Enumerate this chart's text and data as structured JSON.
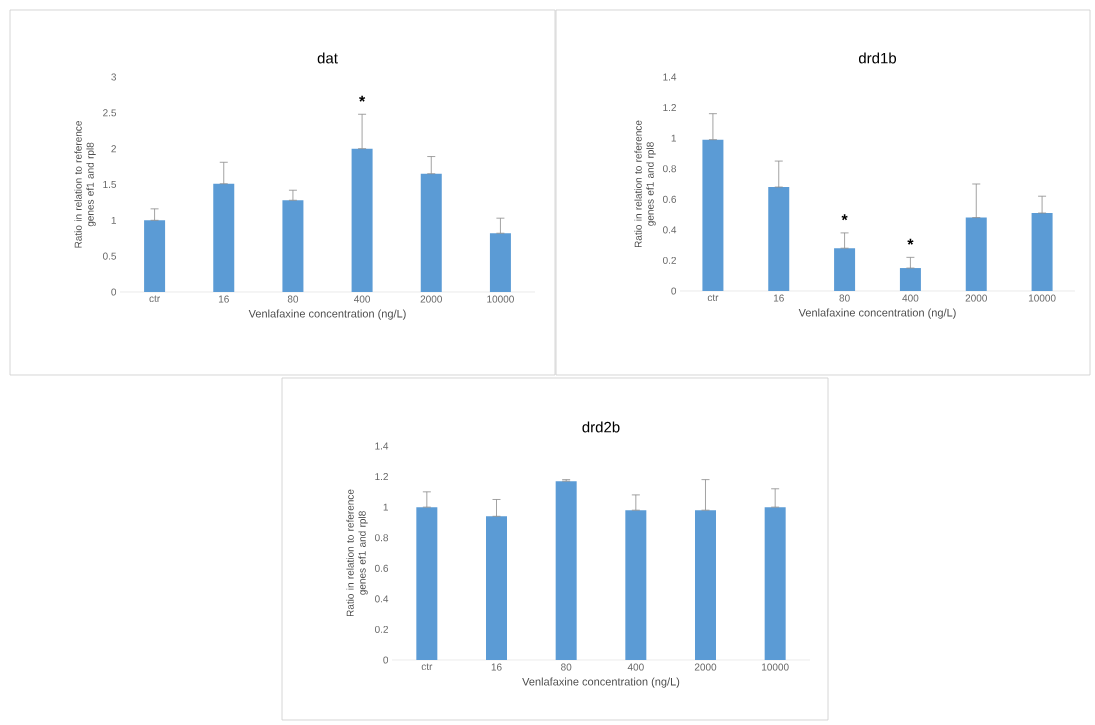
{
  "chart_data": [
    {
      "type": "bar",
      "title": "dat",
      "xlabel": "Venlafaxine concentration (ng/L)",
      "ylabel": "Ratio in relation to reference genes ef1 and rpl8",
      "categories": [
        "ctr",
        "16",
        "80",
        "400",
        "2000",
        "10000"
      ],
      "values": [
        1.0,
        1.51,
        1.28,
        2.0,
        1.65,
        0.82
      ],
      "color": "#5b9bd5",
      "errors": [
        [
          1.0,
          1.16
        ],
        [
          1.51,
          1.81
        ],
        [
          1.28,
          1.42
        ],
        [
          2.0,
          2.48
        ],
        [
          1.65,
          1.89
        ],
        [
          0.82,
          1.03
        ]
      ],
      "ylim": [
        0,
        3
      ],
      "yticks": [
        0,
        0.5,
        1,
        1.5,
        2,
        2.5,
        3
      ],
      "grid": false,
      "annotations": [
        {
          "text": "*",
          "x": "400",
          "y": 2.48
        }
      ]
    },
    {
      "type": "bar",
      "title": "drd1b",
      "xlabel": "Venlafaxine concentration (ng/L)",
      "ylabel": "Ratio in relation to reference genes ef1 and rpl8",
      "categories": [
        "ctr",
        "16",
        "80",
        "400",
        "2000",
        "10000"
      ],
      "values": [
        0.99,
        0.68,
        0.28,
        0.15,
        0.48,
        0.51
      ],
      "color": "#5b9bd5",
      "errors": [
        [
          0.99,
          1.16
        ],
        [
          0.68,
          0.85
        ],
        [
          0.28,
          0.38
        ],
        [
          0.15,
          0.22
        ],
        [
          0.48,
          0.7
        ],
        [
          0.51,
          0.62
        ]
      ],
      "ylim": [
        0,
        1.4
      ],
      "yticks": [
        0,
        0.2,
        0.4,
        0.6,
        0.8,
        1,
        1.2,
        1.4
      ],
      "grid": false,
      "annotations": [
        {
          "text": "*",
          "x": "80",
          "y": 0.38
        },
        {
          "text": "*",
          "x": "400",
          "y": 0.22
        }
      ]
    },
    {
      "type": "bar",
      "title": "drd2b",
      "xlabel": "Venlafaxine concentration (ng/L)",
      "ylabel": "Ratio in relation to reference genes ef1 and rpl8",
      "categories": [
        "ctr",
        "16",
        "80",
        "400",
        "2000",
        "10000"
      ],
      "values": [
        1.0,
        0.94,
        1.17,
        0.98,
        0.98,
        1.0
      ],
      "color": "#5b9bd5",
      "errors": [
        [
          1.0,
          1.1
        ],
        [
          0.94,
          1.05
        ],
        [
          1.17,
          1.18
        ],
        [
          0.98,
          1.08
        ],
        [
          0.98,
          1.18
        ],
        [
          1.0,
          1.12
        ]
      ],
      "ylim": [
        0,
        1.4
      ],
      "yticks": [
        0,
        0.2,
        0.4,
        0.6,
        0.8,
        1,
        1.2,
        1.4
      ],
      "grid": false
    }
  ]
}
